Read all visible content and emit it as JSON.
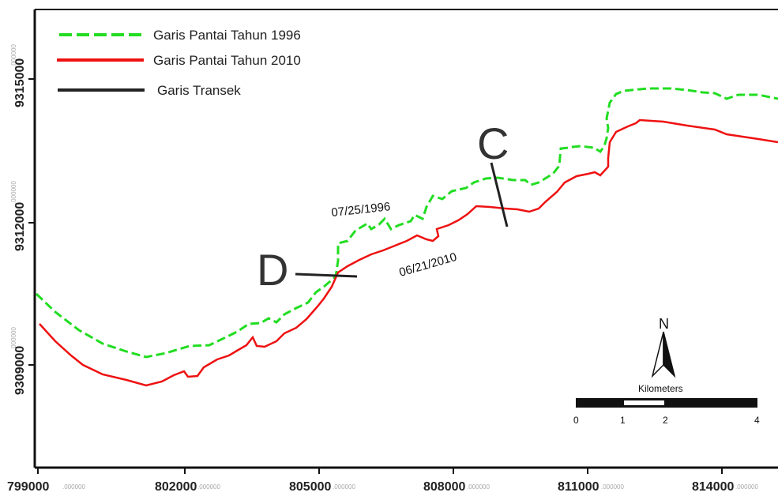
{
  "map": {
    "legend": {
      "items": [
        {
          "label": "Garis Pantai Tahun 1996",
          "color": "#22dd22",
          "style": "dashed"
        },
        {
          "label": "Garis Pantai Tahun 2010",
          "color": "#ee1111",
          "style": "solid"
        },
        {
          "label": "Garis Transek",
          "color": "#222222",
          "style": "solid"
        }
      ]
    },
    "x_ticks": [
      {
        "main": "799000",
        "dec": ".000000"
      },
      {
        "main": "802000",
        "dec": ".000000"
      },
      {
        "main": "805000",
        "dec": ".000000"
      },
      {
        "main": "808000",
        "dec": ".000000"
      },
      {
        "main": "811000",
        "dec": ".000000"
      },
      {
        "main": "814000",
        "dec": ".000000"
      }
    ],
    "y_ticks": [
      {
        "main": "9315000",
        "dec": ".000000"
      },
      {
        "main": "9312000",
        "dec": ".000000"
      },
      {
        "main": "9309000",
        "dec": ".000000"
      }
    ],
    "date_1996": "07/25/1996",
    "date_2010": "06/21/2010",
    "transect_c": "C",
    "transect_d": "D",
    "north": "N",
    "scalebar": {
      "title": "Kilometers",
      "labels": [
        "0",
        "1",
        "2",
        "4"
      ]
    }
  }
}
